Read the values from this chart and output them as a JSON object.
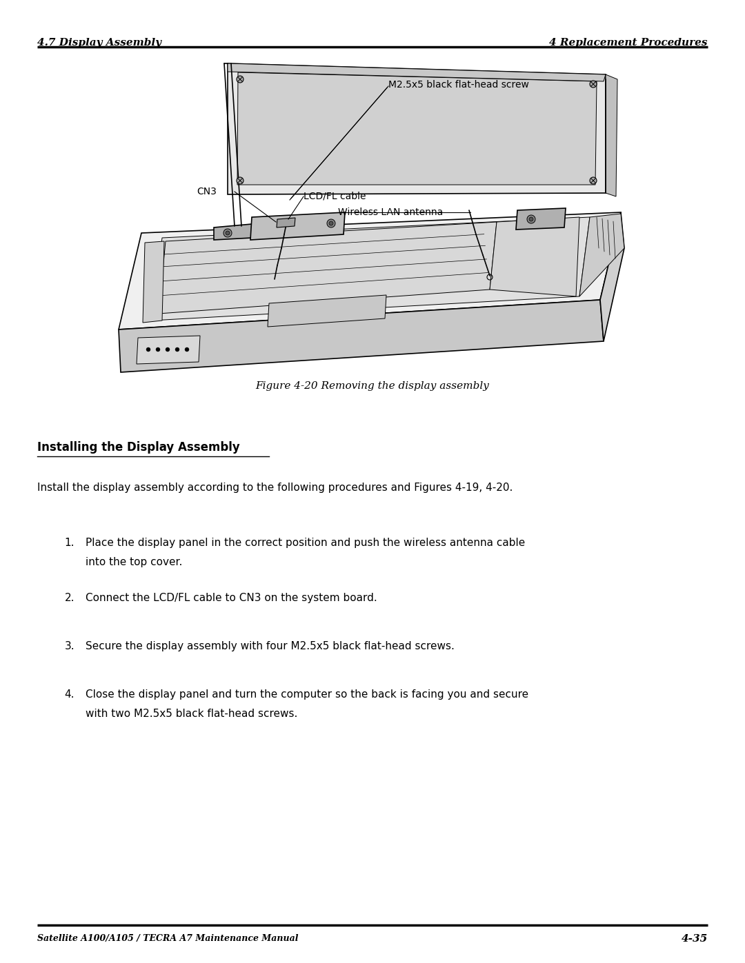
{
  "page_width": 10.8,
  "page_height": 13.97,
  "bg_color": "#ffffff",
  "header_left": "4.7 Display Assembly",
  "header_right": "4 Replacement Procedures",
  "footer_left": "Satellite A100/A105 / TECRA A7 Maintenance Manual",
  "footer_right": "4-35",
  "figure_caption": "Figure 4-20 Removing the display assembly",
  "section_title": "Installing the Display Assembly",
  "intro_text": "Install the display assembly according to the following procedures and Figures 4-19, 4-20.",
  "steps": [
    "Place the display panel in the correct position and push the wireless antenna cable into the top cover.",
    "Connect the LCD/FL cable to CN3 on the system board.",
    "Secure the display assembly with four M2.5x5 black flat-head screws.",
    "Close the display panel and turn the computer so the back is facing you and secure with two M2.5x5 black flat-head screws."
  ],
  "label_screw": "M2.5x5 black flat-head screw",
  "label_cn3": "CN3",
  "label_lcd": "LCD/FL cable",
  "label_wireless": "Wireless LAN antenna",
  "header_fontsize": 11,
  "footer_fontsize": 9,
  "body_fontsize": 11,
  "section_fontsize": 12,
  "caption_fontsize": 11
}
